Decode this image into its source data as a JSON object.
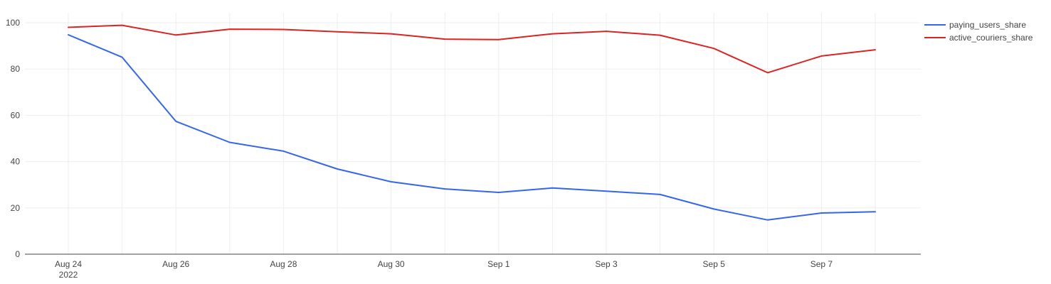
{
  "chart_data": {
    "type": "line",
    "x": [
      "2022-08-24",
      "2022-08-25",
      "2022-08-26",
      "2022-08-27",
      "2022-08-28",
      "2022-08-29",
      "2022-08-30",
      "2022-08-31",
      "2022-09-01",
      "2022-09-02",
      "2022-09-03",
      "2022-09-04",
      "2022-09-05",
      "2022-09-06",
      "2022-09-07",
      "2022-09-08"
    ],
    "series": [
      {
        "name": "paying_users_share",
        "color": "#3366ee",
        "values": [
          94.8,
          85.1,
          57.4,
          48.3,
          44.5,
          36.8,
          31.3,
          28.2,
          26.7,
          28.6,
          27.2,
          25.8,
          19.5,
          14.8,
          17.8,
          18.3
        ]
      },
      {
        "name": "active_couriers_share",
        "color": "#dd2222",
        "values": [
          98.0,
          98.9,
          94.7,
          97.2,
          97.1,
          96.1,
          95.2,
          92.9,
          92.7,
          95.2,
          96.3,
          94.6,
          88.9,
          78.4,
          85.6,
          88.3
        ]
      }
    ],
    "xticks": [
      {
        "label": "Aug 24",
        "sublabel": "2022",
        "date": "2022-08-24"
      },
      {
        "label": "Aug 26",
        "sublabel": "",
        "date": "2022-08-26"
      },
      {
        "label": "Aug 28",
        "sublabel": "",
        "date": "2022-08-28"
      },
      {
        "label": "Aug 30",
        "sublabel": "",
        "date": "2022-08-30"
      },
      {
        "label": "Sep 1",
        "sublabel": "",
        "date": "2022-09-01"
      },
      {
        "label": "Sep 3",
        "sublabel": "",
        "date": "2022-09-03"
      },
      {
        "label": "Sep 5",
        "sublabel": "",
        "date": "2022-09-05"
      },
      {
        "label": "Sep 7",
        "sublabel": "",
        "date": "2022-09-07"
      }
    ],
    "yticks": [
      0,
      20,
      40,
      60,
      80,
      100
    ],
    "ylim": [
      0,
      100
    ],
    "xlim": [
      "2022-08-23",
      "2022-09-09"
    ],
    "title": "",
    "xlabel": "",
    "ylabel": "",
    "grid": true,
    "legend": "top-right"
  }
}
